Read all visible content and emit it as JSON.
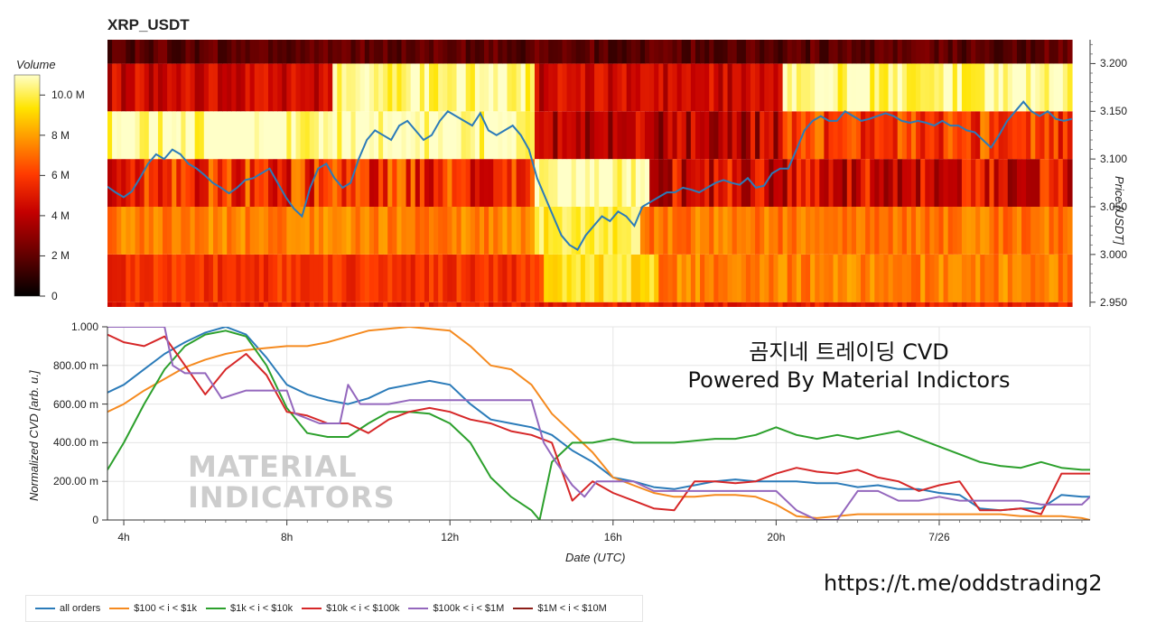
{
  "chart_data": [
    {
      "type": "heatmap",
      "title": "XRP_USDT",
      "colorbar": {
        "title": "Volume",
        "ticks": [
          "0",
          "2 M",
          "4 M",
          "6 M",
          "8 M",
          "10.0 M"
        ],
        "range": [
          0,
          11000000
        ]
      },
      "y_right_label": "Price [USDT]",
      "y_ticks": [
        "2.950",
        "3.000",
        "3.050",
        "3.100",
        "3.150",
        "3.200"
      ],
      "ylim": [
        2.945,
        3.225
      ],
      "price_bands": [
        2.95,
        3.0,
        3.05,
        3.1,
        3.15,
        3.2
      ],
      "price_line_color": "#2b7bb9",
      "price_series": {
        "time_start": 3.6,
        "time_end": 27.7,
        "values": [
          3.071,
          3.065,
          3.06,
          3.066,
          3.08,
          3.095,
          3.105,
          3.1,
          3.11,
          3.105,
          3.095,
          3.09,
          3.083,
          3.075,
          3.07,
          3.064,
          3.07,
          3.078,
          3.08,
          3.085,
          3.09,
          3.075,
          3.06,
          3.048,
          3.04,
          3.07,
          3.09,
          3.095,
          3.08,
          3.07,
          3.075,
          3.1,
          3.12,
          3.13,
          3.125,
          3.12,
          3.135,
          3.14,
          3.13,
          3.12,
          3.125,
          3.14,
          3.15,
          3.145,
          3.14,
          3.135,
          3.148,
          3.13,
          3.125,
          3.13,
          3.135,
          3.125,
          3.11,
          3.08,
          3.06,
          3.04,
          3.02,
          3.01,
          3.005,
          3.02,
          3.03,
          3.04,
          3.035,
          3.045,
          3.04,
          3.03,
          3.05,
          3.055,
          3.06,
          3.065,
          3.065,
          3.07,
          3.068,
          3.065,
          3.07,
          3.075,
          3.078,
          3.075,
          3.073,
          3.08,
          3.07,
          3.072,
          3.085,
          3.09,
          3.09,
          3.11,
          3.13,
          3.14,
          3.145,
          3.14,
          3.14,
          3.15,
          3.145,
          3.14,
          3.142,
          3.145,
          3.148,
          3.145,
          3.14,
          3.138,
          3.14,
          3.138,
          3.135,
          3.14,
          3.135,
          3.135,
          3.13,
          3.128,
          3.12,
          3.112,
          3.125,
          3.14,
          3.15,
          3.16,
          3.15,
          3.145,
          3.15,
          3.142,
          3.14,
          3.142
        ]
      }
    },
    {
      "type": "line",
      "ylabel": "Normalized CVD [arb. u.]",
      "xlabel": "Date (UTC)",
      "x_ticks": [
        "4h",
        "8h",
        "12h",
        "16h",
        "20h",
        "7/26"
      ],
      "x_tick_hours": [
        4,
        8,
        12,
        16,
        20,
        24
      ],
      "xlim": [
        3.6,
        27.7
      ],
      "y_ticks": [
        "0",
        "200.00 m",
        "400.00 m",
        "600.00 m",
        "800.00 m",
        "1.000"
      ],
      "ylim": [
        0,
        1
      ],
      "overlay_text": [
        "곰지네 트레이딩 CVD",
        "Powered By Material Indictors"
      ],
      "watermark": [
        "MATERIAL",
        "INDICATORS"
      ],
      "link": "https://t.me/oddstrading2",
      "series": [
        {
          "name": "all orders",
          "color": "#2b7bb9",
          "x": [
            3.6,
            4,
            4.5,
            5,
            5.5,
            6,
            6.5,
            7,
            7.5,
            8,
            8.5,
            9,
            9.5,
            10,
            10.5,
            11,
            11.5,
            12,
            12.5,
            13,
            13.5,
            14,
            14.5,
            15,
            15.5,
            16,
            16.5,
            17,
            17.5,
            18,
            18.5,
            19,
            19.5,
            20,
            20.5,
            21,
            21.5,
            22,
            22.5,
            23,
            23.5,
            24,
            24.5,
            25,
            25.5,
            26,
            26.5,
            27,
            27.5,
            27.7
          ],
          "values": [
            0.66,
            0.7,
            0.78,
            0.86,
            0.92,
            0.97,
            1.0,
            0.96,
            0.84,
            0.7,
            0.65,
            0.62,
            0.6,
            0.63,
            0.68,
            0.7,
            0.72,
            0.7,
            0.6,
            0.52,
            0.5,
            0.48,
            0.44,
            0.36,
            0.3,
            0.22,
            0.2,
            0.17,
            0.16,
            0.18,
            0.2,
            0.21,
            0.2,
            0.2,
            0.2,
            0.19,
            0.19,
            0.17,
            0.18,
            0.16,
            0.16,
            0.14,
            0.13,
            0.06,
            0.05,
            0.06,
            0.06,
            0.13,
            0.12,
            0.12
          ]
        },
        {
          "name": "$100 < i < $1k",
          "color": "#f58a1f",
          "x": [
            3.6,
            4,
            4.5,
            5,
            5.5,
            6,
            6.5,
            7,
            7.5,
            8,
            8.5,
            9,
            9.5,
            10,
            10.5,
            11,
            11.5,
            12,
            12.5,
            13,
            13.5,
            14,
            14.5,
            15,
            15.5,
            16,
            16.5,
            17,
            17.5,
            18,
            18.5,
            19,
            19.5,
            20,
            20.5,
            21,
            21.5,
            22,
            22.5,
            23,
            23.5,
            24,
            24.5,
            25,
            25.5,
            26,
            26.5,
            27,
            27.5,
            27.7
          ],
          "values": [
            0.56,
            0.6,
            0.67,
            0.73,
            0.79,
            0.83,
            0.86,
            0.88,
            0.89,
            0.9,
            0.9,
            0.92,
            0.95,
            0.98,
            0.99,
            1.0,
            0.99,
            0.98,
            0.9,
            0.8,
            0.78,
            0.7,
            0.55,
            0.45,
            0.35,
            0.22,
            0.18,
            0.14,
            0.12,
            0.12,
            0.13,
            0.13,
            0.12,
            0.08,
            0.02,
            0.01,
            0.02,
            0.03,
            0.03,
            0.03,
            0.03,
            0.03,
            0.03,
            0.03,
            0.03,
            0.02,
            0.02,
            0.02,
            0.01,
            0.0
          ]
        },
        {
          "name": "$1k < i < $10k",
          "color": "#2ca02c",
          "x": [
            3.6,
            4,
            4.5,
            5,
            5.5,
            6,
            6.5,
            7,
            7.5,
            8,
            8.5,
            9,
            9.5,
            10,
            10.5,
            11,
            11.5,
            12,
            12.5,
            13,
            13.5,
            14,
            14.2,
            14.5,
            15,
            15.5,
            16,
            16.5,
            17,
            17.5,
            18,
            18.5,
            19,
            19.5,
            20,
            20.5,
            21,
            21.5,
            22,
            22.5,
            23,
            23.5,
            24,
            24.5,
            25,
            25.5,
            26,
            26.5,
            27,
            27.5,
            27.7
          ],
          "values": [
            0.26,
            0.4,
            0.6,
            0.78,
            0.9,
            0.96,
            0.98,
            0.95,
            0.8,
            0.58,
            0.45,
            0.43,
            0.43,
            0.5,
            0.56,
            0.56,
            0.55,
            0.5,
            0.4,
            0.22,
            0.12,
            0.05,
            0.0,
            0.3,
            0.4,
            0.4,
            0.42,
            0.4,
            0.4,
            0.4,
            0.41,
            0.42,
            0.42,
            0.44,
            0.48,
            0.44,
            0.42,
            0.44,
            0.42,
            0.44,
            0.46,
            0.42,
            0.38,
            0.34,
            0.3,
            0.28,
            0.27,
            0.3,
            0.27,
            0.26,
            0.26
          ]
        },
        {
          "name": "$10k < i < $100k",
          "color": "#d62728",
          "x": [
            3.6,
            4,
            4.5,
            5,
            5.5,
            6,
            6.5,
            7,
            7.5,
            8,
            8.5,
            9,
            9.5,
            10,
            10.5,
            11,
            11.5,
            12,
            12.5,
            13,
            13.5,
            14,
            14.5,
            15,
            15.5,
            16,
            16.5,
            17,
            17.5,
            18,
            18.5,
            19,
            19.5,
            20,
            20.5,
            21,
            21.5,
            22,
            22.5,
            23,
            23.5,
            24,
            24.5,
            25,
            25.5,
            26,
            26.5,
            27,
            27.5,
            27.7
          ],
          "values": [
            0.96,
            0.92,
            0.9,
            0.95,
            0.8,
            0.65,
            0.78,
            0.86,
            0.75,
            0.56,
            0.54,
            0.5,
            0.5,
            0.45,
            0.52,
            0.56,
            0.58,
            0.56,
            0.52,
            0.5,
            0.46,
            0.44,
            0.4,
            0.1,
            0.2,
            0.14,
            0.1,
            0.06,
            0.05,
            0.2,
            0.2,
            0.19,
            0.2,
            0.24,
            0.27,
            0.25,
            0.24,
            0.26,
            0.22,
            0.2,
            0.15,
            0.18,
            0.2,
            0.05,
            0.05,
            0.06,
            0.03,
            0.24,
            0.24,
            0.24
          ]
        },
        {
          "name": "$100k < i < $1M",
          "color": "#9467bd",
          "x": [
            3.6,
            4,
            4.5,
            5,
            5.2,
            5.5,
            6,
            6.4,
            7,
            7.5,
            8,
            8.2,
            8.8,
            9.3,
            9.5,
            9.8,
            10.5,
            11,
            11.6,
            12,
            13,
            13.5,
            14,
            14.3,
            14.6,
            15,
            15.3,
            15.6,
            16,
            16.5,
            17,
            17.5,
            18,
            18.5,
            19,
            19.5,
            20,
            20.5,
            21,
            21.5,
            22,
            22.5,
            23,
            23.5,
            24,
            24.5,
            25,
            25.5,
            26,
            26.5,
            27,
            27.5,
            27.7
          ],
          "values": [
            1.0,
            1.0,
            1.0,
            1.0,
            0.8,
            0.76,
            0.76,
            0.63,
            0.67,
            0.67,
            0.67,
            0.55,
            0.5,
            0.5,
            0.7,
            0.6,
            0.6,
            0.62,
            0.62,
            0.62,
            0.62,
            0.62,
            0.62,
            0.4,
            0.3,
            0.18,
            0.12,
            0.2,
            0.2,
            0.2,
            0.15,
            0.15,
            0.15,
            0.15,
            0.15,
            0.15,
            0.15,
            0.05,
            0.0,
            0.0,
            0.15,
            0.15,
            0.1,
            0.1,
            0.12,
            0.1,
            0.1,
            0.1,
            0.1,
            0.08,
            0.08,
            0.08,
            0.12
          ]
        },
        {
          "name": "$1M < i < $10M",
          "color": "#8c1d18",
          "x": [],
          "values": []
        }
      ]
    }
  ]
}
